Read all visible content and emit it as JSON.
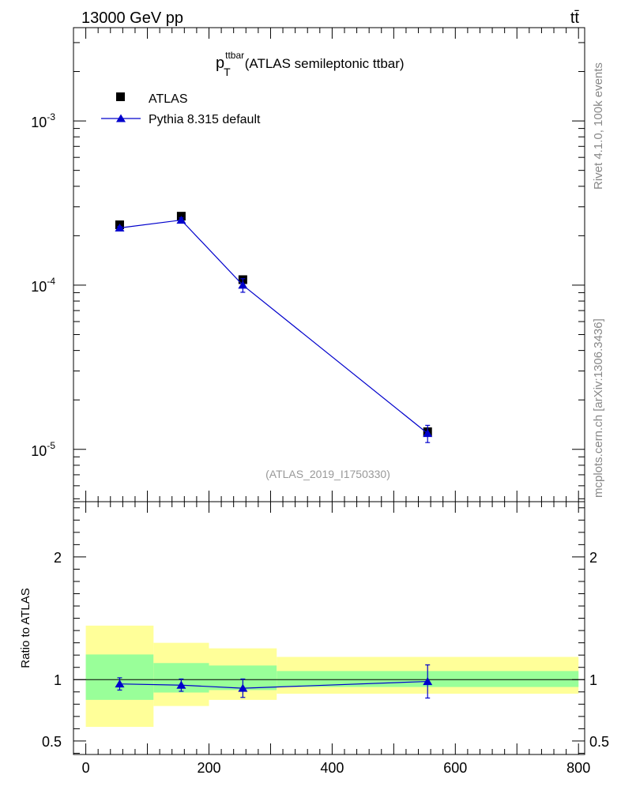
{
  "header": {
    "energy_label": "13000 GeV pp",
    "process_label": "tt̄"
  },
  "side_text": {
    "rivet": "Rivet 4.1.0,  100k events",
    "mcplots": "mcplots.cern.ch [arXiv:1306.3436]"
  },
  "chart_data": [
    {
      "type": "scatter",
      "panel": "main",
      "title": "p",
      "title_sup": "ttbar",
      "title_sub": "T",
      "title_rest": "(ATLAS semileptonic ttbar)",
      "watermark": "(ATLAS_2019_I1750330)",
      "yscale": "log",
      "xlim": [
        -20,
        810
      ],
      "ylim": [
        4.8e-06,
        0.0037
      ],
      "y_ticks": [
        {
          "base": "10",
          "exp": "-5",
          "value": 1e-05
        },
        {
          "base": "10",
          "exp": "-4",
          "value": 0.0001
        },
        {
          "base": "10",
          "exp": "-3",
          "value": 0.001
        }
      ],
      "legend_position": "top-left",
      "series": [
        {
          "name": "ATLAS",
          "marker": "square",
          "color": "#000000",
          "x": [
            55,
            155,
            255,
            555
          ],
          "y": [
            0.000233,
            0.000263,
            0.000108,
            1.28e-05
          ],
          "yerr": [
            6e-06,
            6e-06,
            3e-06,
            9e-07
          ]
        },
        {
          "name": "Pythia 8.315 default",
          "marker": "triangle",
          "color": "#0000cc",
          "x": [
            55,
            155,
            255,
            555
          ],
          "y": [
            0.000223,
            0.000249,
            0.0001,
            1.25e-05
          ],
          "yerr": [
            5e-06,
            8e-06,
            9.5e-06,
            1.5e-06
          ]
        }
      ]
    },
    {
      "type": "scatter",
      "panel": "ratio",
      "ylabel": "Ratio to ATLAS",
      "xlim": [
        -20,
        810
      ],
      "ylim": [
        0.39,
        2.45
      ],
      "x_tick_labels": [
        "0",
        "200",
        "400",
        "600",
        "800"
      ],
      "x_tick_values": [
        0,
        200,
        400,
        600,
        800
      ],
      "y_tick_labels": [
        "0.5",
        "1",
        "2"
      ],
      "y_tick_values": [
        0.5,
        1,
        2
      ],
      "bands": {
        "bin_edges": [
          0,
          110,
          200,
          310,
          800
        ],
        "inner_low": [
          0.835,
          0.895,
          0.915,
          0.94
        ],
        "inner_high": [
          1.205,
          1.135,
          1.115,
          1.07
        ],
        "outer_low": [
          0.615,
          0.785,
          0.835,
          0.885
        ],
        "outer_high": [
          1.44,
          1.3,
          1.255,
          1.185
        ],
        "inner_color": "#99ff99",
        "outer_color": "#ffff99"
      },
      "series": [
        {
          "name": "Pythia 8.315 default",
          "color": "#0000cc",
          "x": [
            55,
            155,
            255,
            555
          ],
          "y": [
            0.965,
            0.955,
            0.93,
            0.985
          ],
          "yerr": [
            0.05,
            0.05,
            0.075,
            0.135
          ]
        }
      ]
    }
  ]
}
